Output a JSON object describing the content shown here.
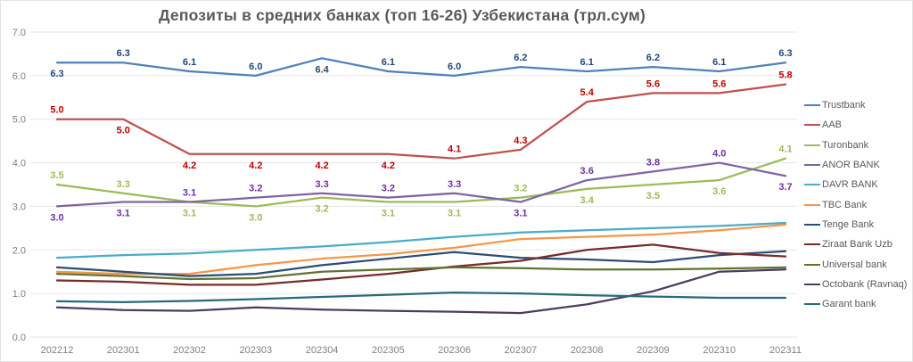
{
  "title": "Депозиты в средних банках (топ 16-26) Узбекистана (трл.сум)",
  "chart_data": {
    "type": "line",
    "title": "Депозиты в средних банках (топ 16-26) Узбекистана (трл.сум)",
    "categories": [
      "202212",
      "202301",
      "202302",
      "202303",
      "202304",
      "202305",
      "202306",
      "202307",
      "202308",
      "202309",
      "202310",
      "202311"
    ],
    "xlabel": "",
    "ylabel": "",
    "ylim": [
      0,
      7
    ],
    "ytick_step": 1,
    "yticks": [
      "0.0",
      "1.0",
      "2.0",
      "3.0",
      "4.0",
      "5.0",
      "6.0",
      "7.0"
    ],
    "grid": true,
    "legend_position": "right",
    "series": [
      {
        "name": "Trustbank",
        "color": "#4F81BD",
        "label_color": "#1F497D",
        "data_labels": true,
        "values": [
          6.3,
          6.3,
          6.1,
          6.0,
          6.4,
          6.1,
          6.0,
          6.2,
          6.1,
          6.2,
          6.1,
          6.3
        ],
        "label_sides": [
          "below",
          "above",
          "above",
          "above",
          "below",
          "above",
          "above",
          "above",
          "above",
          "above",
          "above",
          "above"
        ]
      },
      {
        "name": "AAB",
        "color": "#C0504D",
        "label_color": "#C00000",
        "data_labels": true,
        "values": [
          5.0,
          5.0,
          4.2,
          4.2,
          4.2,
          4.2,
          4.1,
          4.3,
          5.4,
          5.6,
          5.6,
          5.8
        ],
        "label_sides": [
          "above",
          "below",
          "below",
          "below",
          "below",
          "below",
          "above",
          "above",
          "above",
          "above",
          "above",
          "above"
        ]
      },
      {
        "name": "Turonbank",
        "color": "#9BBB59",
        "label_color": "#9BBB59",
        "data_labels": true,
        "values": [
          3.5,
          3.3,
          3.1,
          3.0,
          3.2,
          3.1,
          3.1,
          3.2,
          3.4,
          3.5,
          3.6,
          4.1
        ],
        "label_sides": [
          "above",
          "above",
          "below",
          "below",
          "below",
          "below",
          "below",
          "above",
          "below",
          "below",
          "below",
          "above"
        ]
      },
      {
        "name": "ANOR BANK",
        "color": "#8064A2",
        "label_color": "#7030A0",
        "data_labels": true,
        "values": [
          3.0,
          3.1,
          3.1,
          3.2,
          3.3,
          3.2,
          3.3,
          3.1,
          3.6,
          3.8,
          4.0,
          3.7
        ],
        "label_sides": [
          "below",
          "below",
          "above",
          "above",
          "above",
          "above",
          "above",
          "below",
          "above",
          "above",
          "above",
          "below"
        ]
      },
      {
        "name": "DAVR BANK",
        "color": "#4BACC6",
        "data_labels": false,
        "values": [
          1.82,
          1.88,
          1.92,
          2.0,
          2.08,
          2.18,
          2.3,
          2.4,
          2.45,
          2.5,
          2.55,
          2.62
        ]
      },
      {
        "name": "TBC Bank",
        "color": "#F79646",
        "data_labels": false,
        "values": [
          1.5,
          1.45,
          1.45,
          1.65,
          1.8,
          1.9,
          2.05,
          2.25,
          2.3,
          2.35,
          2.45,
          2.58
        ]
      },
      {
        "name": "Tenge Bank",
        "color": "#2C4D75",
        "data_labels": false,
        "values": [
          1.6,
          1.5,
          1.4,
          1.45,
          1.65,
          1.8,
          1.95,
          1.82,
          1.78,
          1.72,
          1.88,
          1.97
        ]
      },
      {
        "name": "Ziraat Bank Uzb",
        "color": "#772C2A",
        "data_labels": false,
        "values": [
          1.3,
          1.27,
          1.2,
          1.2,
          1.32,
          1.45,
          1.62,
          1.75,
          2.0,
          2.12,
          1.93,
          1.85
        ]
      },
      {
        "name": "Universal bank",
        "color": "#5F7530",
        "data_labels": false,
        "values": [
          1.45,
          1.4,
          1.33,
          1.35,
          1.5,
          1.55,
          1.6,
          1.58,
          1.55,
          1.55,
          1.57,
          1.6
        ]
      },
      {
        "name": "Octobank (Ravnaq)",
        "color": "#4D3B62",
        "data_labels": false,
        "values": [
          0.68,
          0.62,
          0.6,
          0.68,
          0.63,
          0.6,
          0.58,
          0.55,
          0.75,
          1.05,
          1.5,
          1.55
        ]
      },
      {
        "name": "Garant bank",
        "color": "#276A7C",
        "data_labels": false,
        "values": [
          0.82,
          0.8,
          0.83,
          0.87,
          0.92,
          0.97,
          1.02,
          1.0,
          0.96,
          0.93,
          0.9,
          0.9
        ]
      }
    ]
  }
}
